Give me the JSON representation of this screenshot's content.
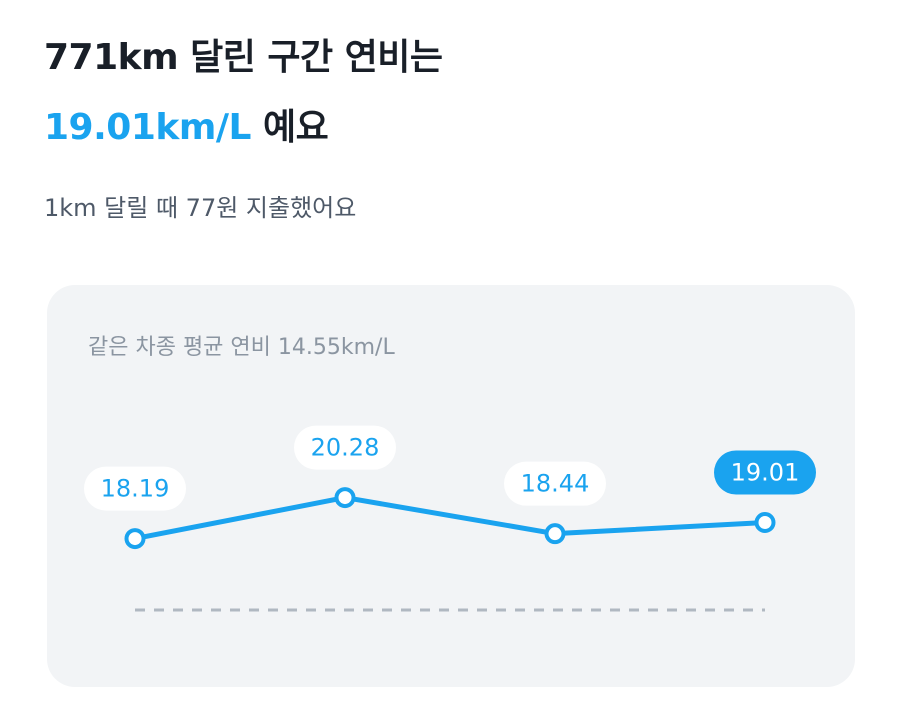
{
  "header": {
    "title_line1": "771km 달린 구간 연비는",
    "title_value": "19.01km/L",
    "title_suffix": "예요",
    "subtitle": "1km 달릴 때 77원 지출했어요"
  },
  "chart_data": {
    "type": "line",
    "reference": {
      "label": "같은 차종 평균 연비",
      "value": 14.55,
      "unit": "km/L"
    },
    "values": [
      18.19,
      20.28,
      18.44,
      19.01
    ],
    "color": "#1aa3ef",
    "highlight_index": 3,
    "ylim": [
      12,
      25
    ]
  }
}
